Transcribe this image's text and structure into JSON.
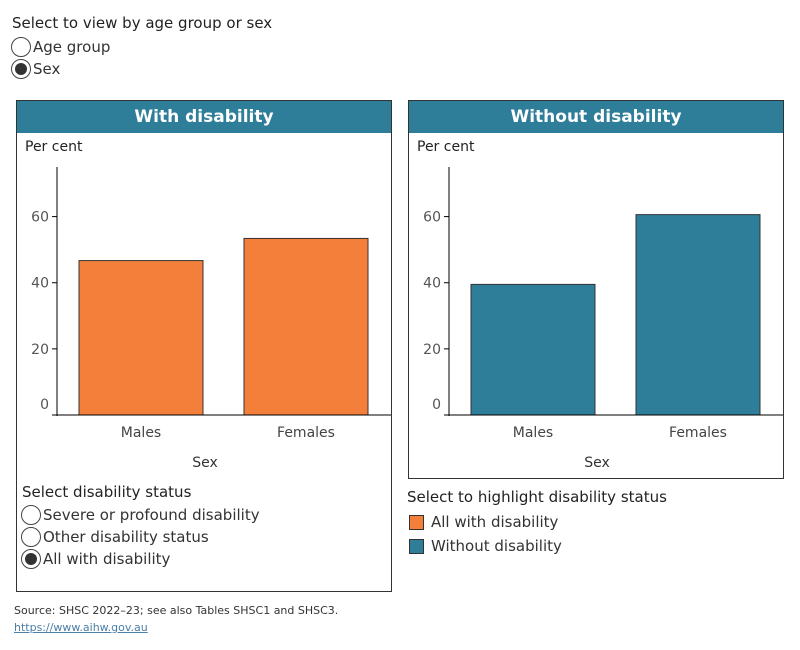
{
  "view_selector": {
    "title": "Select to view by age group or sex",
    "options": [
      {
        "label": "Age group",
        "selected": false
      },
      {
        "label": "Sex",
        "selected": true
      }
    ]
  },
  "colors": {
    "with": "#f47f3a",
    "without": "#2e7d99",
    "header": "#2e7d99"
  },
  "chart_data": [
    {
      "type": "bar",
      "title": "With disability",
      "ylabel": "Per cent",
      "xlabel": "Sex",
      "categories": [
        "Males",
        "Females"
      ],
      "values": [
        46.7,
        53.4
      ],
      "ylim": [
        0,
        75
      ],
      "yticks": [
        0,
        20,
        40,
        60
      ],
      "color": "#f47f3a",
      "grid": false
    },
    {
      "type": "bar",
      "title": "Without disability",
      "ylabel": "Per cent",
      "xlabel": "Sex",
      "categories": [
        "Males",
        "Females"
      ],
      "values": [
        39.5,
        60.6
      ],
      "ylim": [
        0,
        75
      ],
      "yticks": [
        0,
        20,
        40,
        60
      ],
      "color": "#2e7d99",
      "grid": false
    }
  ],
  "status_selector": {
    "title": "Select disability status",
    "options": [
      {
        "label": "Severe or profound disability",
        "selected": false
      },
      {
        "label": "Other disability status",
        "selected": false
      },
      {
        "label": "All with disability",
        "selected": true
      }
    ]
  },
  "legend": {
    "title": "Select to highlight disability status",
    "items": [
      {
        "label": "All with disability",
        "color": "#f47f3a"
      },
      {
        "label": "Without disability",
        "color": "#2e7d99"
      }
    ]
  },
  "footer": {
    "source": "Source: SHSC 2022–23; see also Tables SHSC1 and SHSC3.",
    "link": "https://www.aihw.gov.au"
  }
}
